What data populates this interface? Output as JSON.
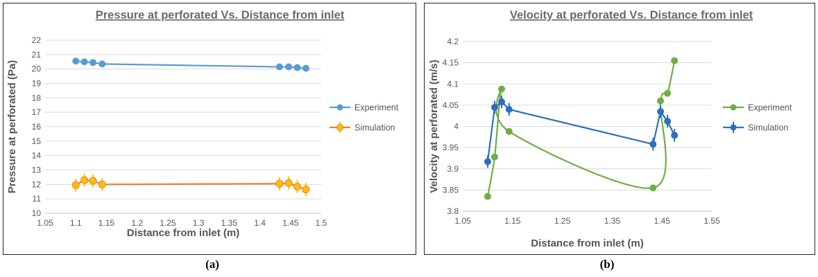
{
  "captions": {
    "a": "(a)",
    "b": "(b)"
  },
  "chart_data": [
    {
      "type": "line",
      "title": "Pressure at perforated Vs. Distance from inlet",
      "xlabel": "Distance from inlet (m)",
      "ylabel": "Pressure at perforated (Pa)",
      "xlim": [
        1.05,
        1.5
      ],
      "ylim": [
        10,
        22
      ],
      "xticks": [
        "1.05",
        "1.1",
        "1.15",
        "1.2",
        "1.25",
        "1.3",
        "1.35",
        "1.4",
        "1.45",
        "1.5"
      ],
      "yticks": [
        "10",
        "11",
        "12",
        "13",
        "14",
        "15",
        "16",
        "17",
        "18",
        "19",
        "20",
        "21",
        "22"
      ],
      "grid": true,
      "legend": "right",
      "series": [
        {
          "name": "Experiment",
          "color": "#5b9bd5",
          "x": [
            1.1,
            1.114,
            1.128,
            1.143,
            1.432,
            1.447,
            1.461,
            1.475
          ],
          "y": [
            20.55,
            20.5,
            20.45,
            20.35,
            20.15,
            20.15,
            20.1,
            20.05
          ],
          "error": null
        },
        {
          "name": "Simulation",
          "color": "#ed7d31",
          "marker_color": "#ffc000",
          "x": [
            1.1,
            1.114,
            1.128,
            1.143,
            1.432,
            1.447,
            1.461,
            1.475
          ],
          "y": [
            11.95,
            12.3,
            12.25,
            12.0,
            12.05,
            12.1,
            11.85,
            11.65
          ],
          "error": 0.45
        }
      ]
    },
    {
      "type": "line",
      "title": "Velocity at perforated Vs. Distance from inlet",
      "xlabel": "Distance from inlet (m)",
      "ylabel": "Velocity at perforated (m/s)",
      "xlim": [
        1.05,
        1.55
      ],
      "ylim": [
        3.8,
        4.2
      ],
      "xticks": [
        "1.05",
        "1.15",
        "1.25",
        "1.35",
        "1.45",
        "1.55"
      ],
      "yticks": [
        "3.8",
        "3.85",
        "3.9",
        "3.95",
        "4",
        "4.05",
        "4.1",
        "4.15",
        "4.2"
      ],
      "grid": true,
      "legend": "right",
      "series": [
        {
          "name": "Experiment",
          "color": "#70ad47",
          "x": [
            1.1,
            1.114,
            1.128,
            1.143,
            1.432,
            1.447,
            1.461,
            1.475
          ],
          "y": [
            3.835,
            3.928,
            4.088,
            3.988,
            3.855,
            4.06,
            4.078,
            4.155
          ],
          "error": null
        },
        {
          "name": "Simulation",
          "color": "#2e6fbd",
          "x": [
            1.1,
            1.114,
            1.128,
            1.143,
            1.432,
            1.447,
            1.461,
            1.475
          ],
          "y": [
            3.917,
            4.045,
            4.058,
            4.04,
            3.958,
            4.035,
            4.012,
            3.979
          ],
          "error": 0.015
        }
      ]
    }
  ]
}
